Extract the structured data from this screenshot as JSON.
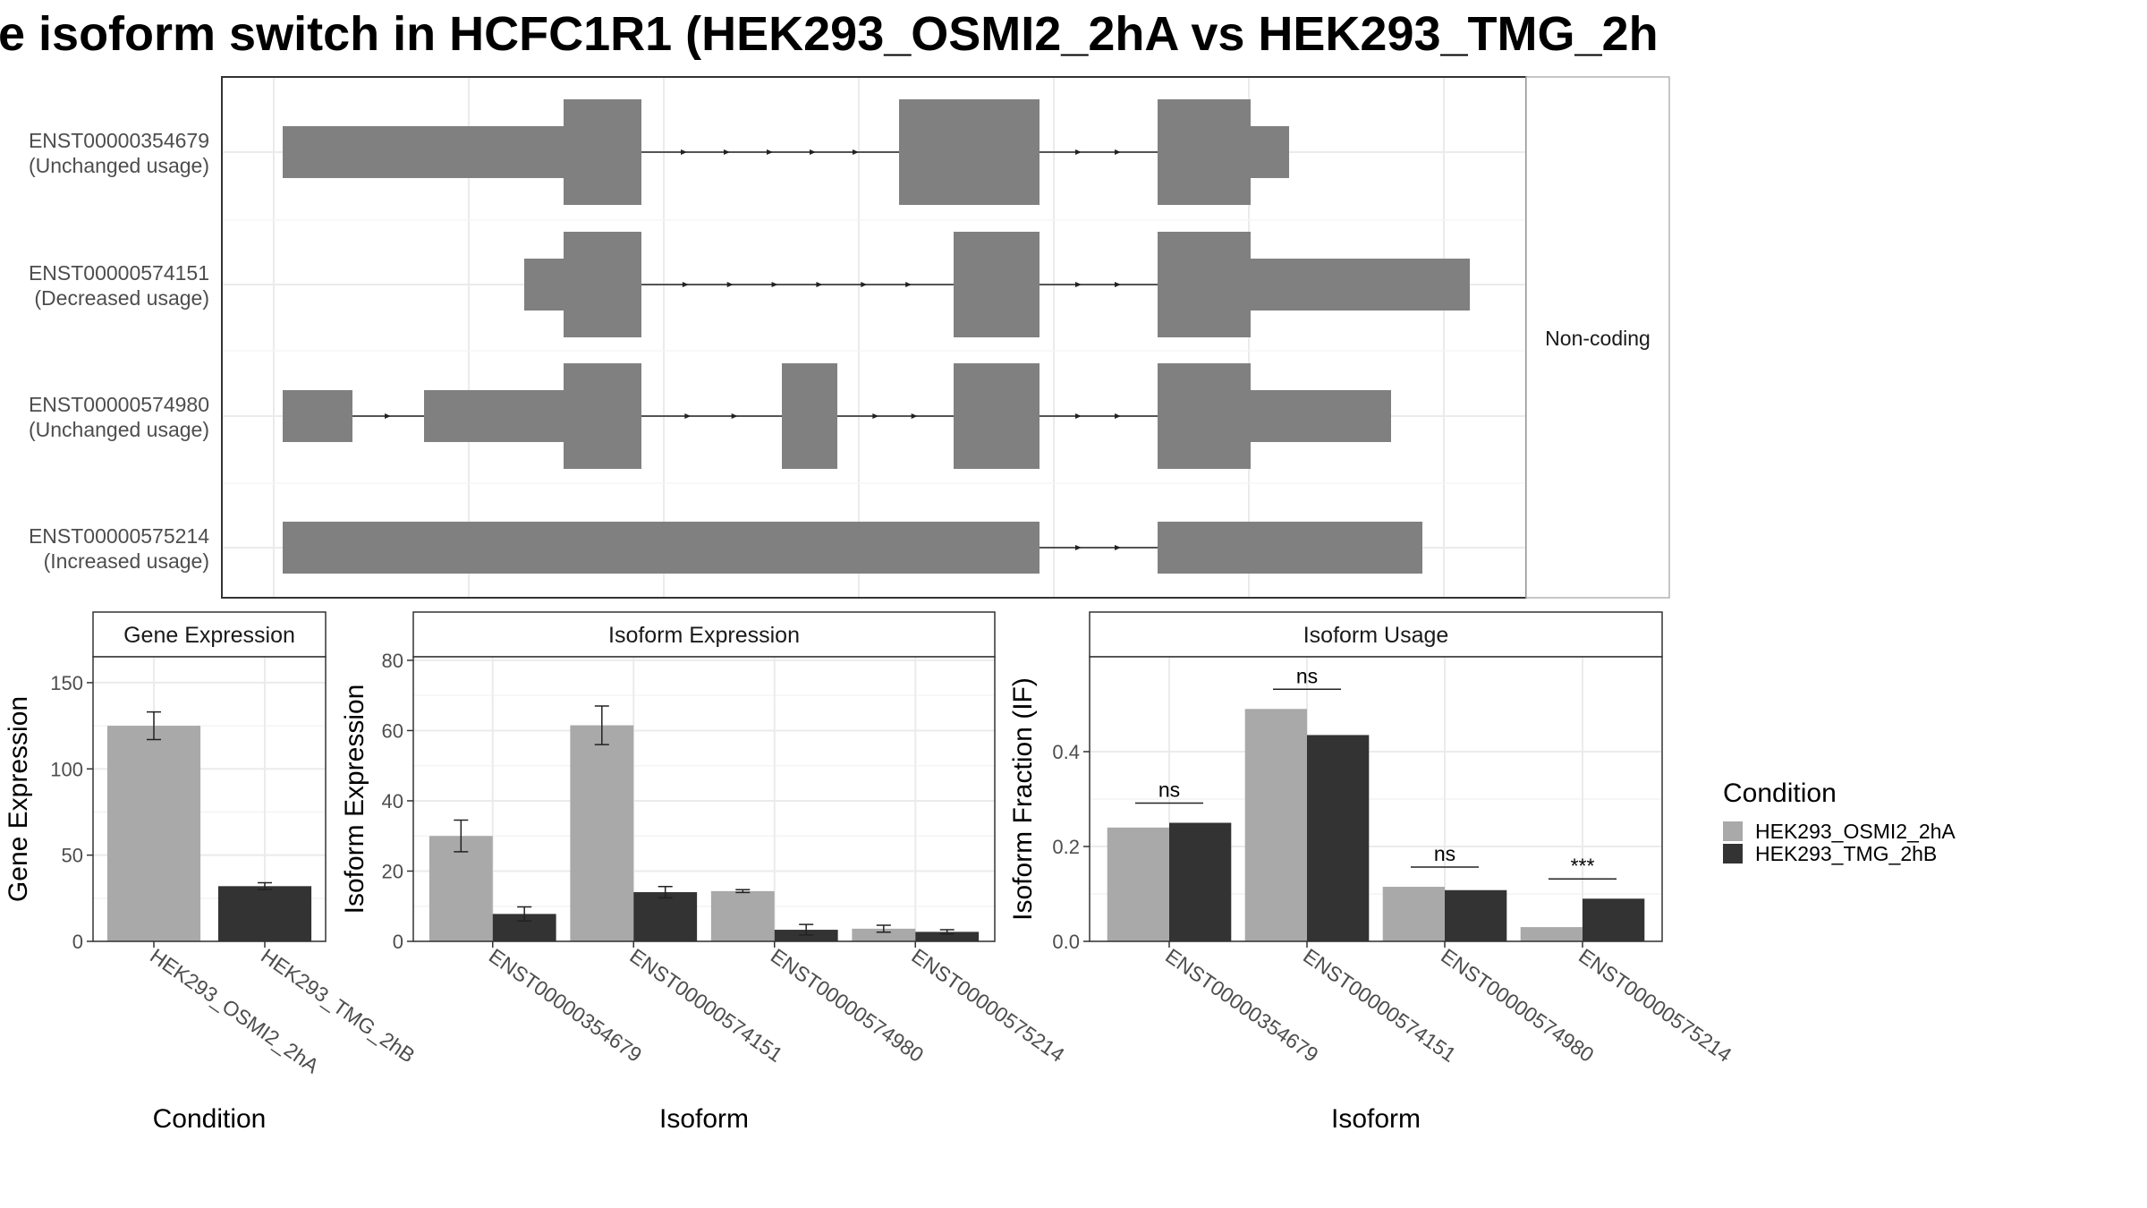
{
  "title": "e isoform switch in HCFC1R1 (HEK293_OSMI2_2hA vs HEK293_TMG_2h",
  "colors": {
    "osmi": "#a9a9a9",
    "tmg": "#333333",
    "transcript": "#808080",
    "grid": "#ebebeb",
    "frame": "#333333"
  },
  "chart_data": [
    {
      "type": "transcript-structure",
      "facet_label": "Non-coding",
      "transcripts": [
        {
          "id": "ENST00000354679",
          "usage": "(Unchanged usage)"
        },
        {
          "id": "ENST00000574151",
          "usage": "(Decreased usage)"
        },
        {
          "id": "ENST00000574980",
          "usage": "(Unchanged usage)"
        },
        {
          "id": "ENST00000575214",
          "usage": "(Increased usage)"
        }
      ]
    },
    {
      "type": "bar",
      "panel": "Gene Expression",
      "xlabel": "Condition",
      "ylabel": "Gene Expression",
      "ylim": [
        0,
        165
      ],
      "yticks": [
        0,
        50,
        100,
        150
      ],
      "categories": [
        "HEK293_OSMI2_2hA",
        "HEK293_TMG_2hB"
      ],
      "values": [
        125,
        32
      ],
      "errors": [
        8,
        2
      ]
    },
    {
      "type": "bar",
      "panel": "Isoform Expression",
      "xlabel": "Isoform",
      "ylabel": "Isoform Expression",
      "ylim": [
        0,
        81
      ],
      "yticks": [
        0,
        20,
        40,
        60,
        80
      ],
      "categories": [
        "ENST00000354679",
        "ENST00000574151",
        "ENST00000574980",
        "ENST00000575214"
      ],
      "series": [
        {
          "name": "HEK293_OSMI2_2hA",
          "values": [
            30,
            61.5,
            14.3,
            3.6
          ],
          "errors": [
            4.5,
            5.5,
            0.4,
            1
          ]
        },
        {
          "name": "HEK293_TMG_2hB",
          "values": [
            7.8,
            14,
            3.3,
            2.7
          ],
          "errors": [
            2,
            1.6,
            1.5,
            0.6
          ]
        }
      ]
    },
    {
      "type": "bar",
      "panel": "Isoform Usage",
      "xlabel": "Isoform",
      "ylabel": "Isoform Fraction (IF)",
      "ylim": [
        0,
        0.6
      ],
      "yticks": [
        0.0,
        0.2,
        0.4
      ],
      "categories": [
        "ENST00000354679",
        "ENST00000574151",
        "ENST00000574980",
        "ENST00000575214"
      ],
      "series": [
        {
          "name": "HEK293_OSMI2_2hA",
          "values": [
            0.24,
            0.49,
            0.115,
            0.03
          ]
        },
        {
          "name": "HEK293_TMG_2hB",
          "values": [
            0.25,
            0.435,
            0.108,
            0.09
          ]
        }
      ],
      "significance": [
        "ns",
        "ns",
        "ns",
        "***"
      ]
    }
  ],
  "legend": {
    "title": "Condition",
    "items": [
      "HEK293_OSMI2_2hA",
      "HEK293_TMG_2hB"
    ]
  }
}
